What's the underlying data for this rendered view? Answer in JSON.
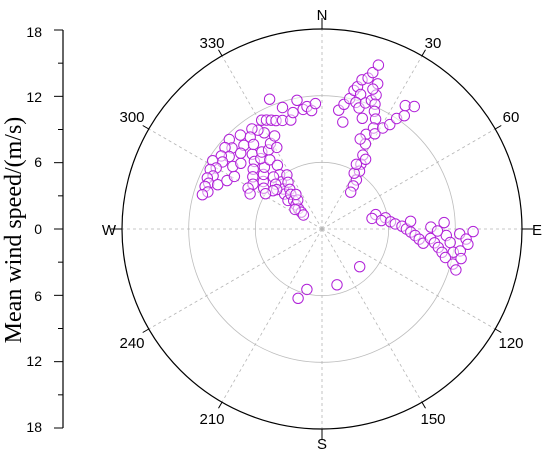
{
  "chart_data": {
    "type": "scatter",
    "coordinate_system": "polar",
    "ylabel": "Mean wind speed/(m/s)",
    "radial_ticks": [
      "18",
      "12",
      "6",
      "0",
      "6",
      "12",
      "18"
    ],
    "cardinal_labels": [
      "N",
      "E",
      "S",
      "W"
    ],
    "angle_labels": [
      "30",
      "60",
      "120",
      "150",
      "210",
      "240",
      "300",
      "330"
    ],
    "r_range": [
      0,
      18
    ],
    "grid_rings": [
      6,
      12
    ],
    "grid": true,
    "marker": "open-circle",
    "marker_color": "#b020d8",
    "points": [
      {
        "theta": 331,
        "r": 11.2
      },
      {
        "theta": 333,
        "r": 11.0
      },
      {
        "theta": 335,
        "r": 10.8
      },
      {
        "theta": 337,
        "r": 10.6
      },
      {
        "theta": 340,
        "r": 10.4
      },
      {
        "theta": 342,
        "r": 11.5
      },
      {
        "theta": 344,
        "r": 10.2
      },
      {
        "theta": 346,
        "r": 10.8
      },
      {
        "theta": 349,
        "r": 11.8
      },
      {
        "theta": 351,
        "r": 10.9
      },
      {
        "theta": 353,
        "r": 11.1
      },
      {
        "theta": 355,
        "r": 10.7
      },
      {
        "theta": 357,
        "r": 11.3
      },
      {
        "theta": 338,
        "r": 12.6
      },
      {
        "theta": 329,
        "r": 10.1
      },
      {
        "theta": 327,
        "r": 10.6
      },
      {
        "theta": 325,
        "r": 11.0
      },
      {
        "theta": 322,
        "r": 10.5
      },
      {
        "theta": 319,
        "r": 11.2
      },
      {
        "theta": 317,
        "r": 10.3
      },
      {
        "theta": 314,
        "r": 11.6
      },
      {
        "theta": 312,
        "r": 10.9
      },
      {
        "theta": 310,
        "r": 11.4
      },
      {
        "theta": 308,
        "r": 10.6
      },
      {
        "theta": 306,
        "r": 11.2
      },
      {
        "theta": 304,
        "r": 10.8
      },
      {
        "theta": 302,
        "r": 11.6
      },
      {
        "theta": 300,
        "r": 11.0
      },
      {
        "theta": 298,
        "r": 11.4
      },
      {
        "theta": 296,
        "r": 10.9
      },
      {
        "theta": 294,
        "r": 11.3
      },
      {
        "theta": 292,
        "r": 11.0
      },
      {
        "theta": 290,
        "r": 11.2
      },
      {
        "theta": 288,
        "r": 10.8
      },
      {
        "theta": 286,
        "r": 11.2
      },
      {
        "theta": 293,
        "r": 10.2
      },
      {
        "theta": 297,
        "r": 9.6
      },
      {
        "theta": 301,
        "r": 9.2
      },
      {
        "theta": 305,
        "r": 9.8
      },
      {
        "theta": 309,
        "r": 9.4
      },
      {
        "theta": 313,
        "r": 10.0
      },
      {
        "theta": 317,
        "r": 9.2
      },
      {
        "theta": 321,
        "r": 9.8
      },
      {
        "theta": 315,
        "r": 8.6
      },
      {
        "theta": 311,
        "r": 8.2
      },
      {
        "theta": 307,
        "r": 7.8
      },
      {
        "theta": 303,
        "r": 7.4
      },
      {
        "theta": 309,
        "r": 6.8
      },
      {
        "theta": 313,
        "r": 7.2
      },
      {
        "theta": 317,
        "r": 7.6
      },
      {
        "theta": 319,
        "r": 8.4
      },
      {
        "theta": 322,
        "r": 8.8
      },
      {
        "theta": 323,
        "r": 7.8
      },
      {
        "theta": 326,
        "r": 8.6
      },
      {
        "theta": 329,
        "r": 9.0
      },
      {
        "theta": 331,
        "r": 8.4
      },
      {
        "theta": 333,
        "r": 9.4
      },
      {
        "theta": 325,
        "r": 7.0
      },
      {
        "theta": 322,
        "r": 6.2
      },
      {
        "theta": 319,
        "r": 5.6
      },
      {
        "theta": 316,
        "r": 5.0
      },
      {
        "theta": 313,
        "r": 4.6
      },
      {
        "theta": 310,
        "r": 4.0
      },
      {
        "theta": 327,
        "r": 5.8
      },
      {
        "theta": 324,
        "r": 5.2
      },
      {
        "theta": 321,
        "r": 4.6
      },
      {
        "theta": 318,
        "r": 4.2
      },
      {
        "theta": 315,
        "r": 3.6
      },
      {
        "theta": 313,
        "r": 3.2
      },
      {
        "theta": 311,
        "r": 2.8
      },
      {
        "theta": 309,
        "r": 2.4
      },
      {
        "theta": 307,
        "r": 2.1
      },
      {
        "theta": 317,
        "r": 6.4
      },
      {
        "theta": 314,
        "r": 5.8
      },
      {
        "theta": 311,
        "r": 5.4
      },
      {
        "theta": 308,
        "r": 5.6
      },
      {
        "theta": 305,
        "r": 6.4
      },
      {
        "theta": 302,
        "r": 6.0
      },
      {
        "theta": 299,
        "r": 7.6
      },
      {
        "theta": 296,
        "r": 7.2
      },
      {
        "theta": 320,
        "r": 3.4
      },
      {
        "theta": 323,
        "r": 3.9
      },
      {
        "theta": 306,
        "r": 3.0
      },
      {
        "theta": 8,
        "r": 10.8
      },
      {
        "theta": 10,
        "r": 11.4
      },
      {
        "theta": 12,
        "r": 12.0
      },
      {
        "theta": 13,
        "r": 12.8
      },
      {
        "theta": 14,
        "r": 13.2
      },
      {
        "theta": 15,
        "r": 13.9
      },
      {
        "theta": 17,
        "r": 14.2
      },
      {
        "theta": 18,
        "r": 14.8
      },
      {
        "theta": 19,
        "r": 15.6
      },
      {
        "theta": 16,
        "r": 12.6
      },
      {
        "theta": 15,
        "r": 11.8
      },
      {
        "theta": 17,
        "r": 11.4
      },
      {
        "theta": 19,
        "r": 12.0
      },
      {
        "theta": 21,
        "r": 12.4
      },
      {
        "theta": 22,
        "r": 13.0
      },
      {
        "theta": 21,
        "r": 14.0
      },
      {
        "theta": 20,
        "r": 13.4
      },
      {
        "theta": 23,
        "r": 12.2
      },
      {
        "theta": 24,
        "r": 11.6
      },
      {
        "theta": 26,
        "r": 11.0
      },
      {
        "theta": 27,
        "r": 10.2
      },
      {
        "theta": 25,
        "r": 9.4
      },
      {
        "theta": 27,
        "r": 8.6
      },
      {
        "theta": 29,
        "r": 7.6
      },
      {
        "theta": 31,
        "r": 6.8
      },
      {
        "theta": 33,
        "r": 6.2
      },
      {
        "theta": 35,
        "r": 5.4
      },
      {
        "theta": 36,
        "r": 4.8
      },
      {
        "theta": 38,
        "r": 4.2
      },
      {
        "theta": 30,
        "r": 5.8
      },
      {
        "theta": 28,
        "r": 6.6
      },
      {
        "theta": 32,
        "r": 7.4
      },
      {
        "theta": 29,
        "r": 9.8
      },
      {
        "theta": 31,
        "r": 10.6
      },
      {
        "theta": 33,
        "r": 11.2
      },
      {
        "theta": 34,
        "r": 12.0
      },
      {
        "theta": 36,
        "r": 12.6
      },
      {
        "theta": 34,
        "r": 13.4
      },
      {
        "theta": 37,
        "r": 13.8
      },
      {
        "theta": 11,
        "r": 9.8
      },
      {
        "theta": 20,
        "r": 10.6
      },
      {
        "theta": 23,
        "r": 8.8
      },
      {
        "theta": 75,
        "r": 5.0
      },
      {
        "theta": 78,
        "r": 4.6
      },
      {
        "theta": 80,
        "r": 5.8
      },
      {
        "theta": 82,
        "r": 5.4
      },
      {
        "theta": 84,
        "r": 6.2
      },
      {
        "theta": 86,
        "r": 6.6
      },
      {
        "theta": 88,
        "r": 7.2
      },
      {
        "theta": 90,
        "r": 7.6
      },
      {
        "theta": 92,
        "r": 8.0
      },
      {
        "theta": 94,
        "r": 8.4
      },
      {
        "theta": 96,
        "r": 8.8
      },
      {
        "theta": 98,
        "r": 9.2
      },
      {
        "theta": 95,
        "r": 9.8
      },
      {
        "theta": 97,
        "r": 10.2
      },
      {
        "theta": 99,
        "r": 10.6
      },
      {
        "theta": 101,
        "r": 11.0
      },
      {
        "theta": 93,
        "r": 11.2
      },
      {
        "theta": 96,
        "r": 11.6
      },
      {
        "theta": 100,
        "r": 12.0
      },
      {
        "theta": 103,
        "r": 11.4
      },
      {
        "theta": 105,
        "r": 12.2
      },
      {
        "theta": 92,
        "r": 12.4
      },
      {
        "theta": 94,
        "r": 13.0
      },
      {
        "theta": 91,
        "r": 13.6
      },
      {
        "theta": 89,
        "r": 9.8
      },
      {
        "theta": 91,
        "r": 10.4
      },
      {
        "theta": 87,
        "r": 11.0
      },
      {
        "theta": 99,
        "r": 12.6
      },
      {
        "theta": 96,
        "r": 13.2
      },
      {
        "theta": 102,
        "r": 12.8
      },
      {
        "theta": 107,
        "r": 12.6
      },
      {
        "theta": 85,
        "r": 8.0
      },
      {
        "theta": 135,
        "r": 4.8
      },
      {
        "theta": 165,
        "r": 5.2
      },
      {
        "theta": 194,
        "r": 5.6
      },
      {
        "theta": 199,
        "r": 6.6
      }
    ]
  }
}
